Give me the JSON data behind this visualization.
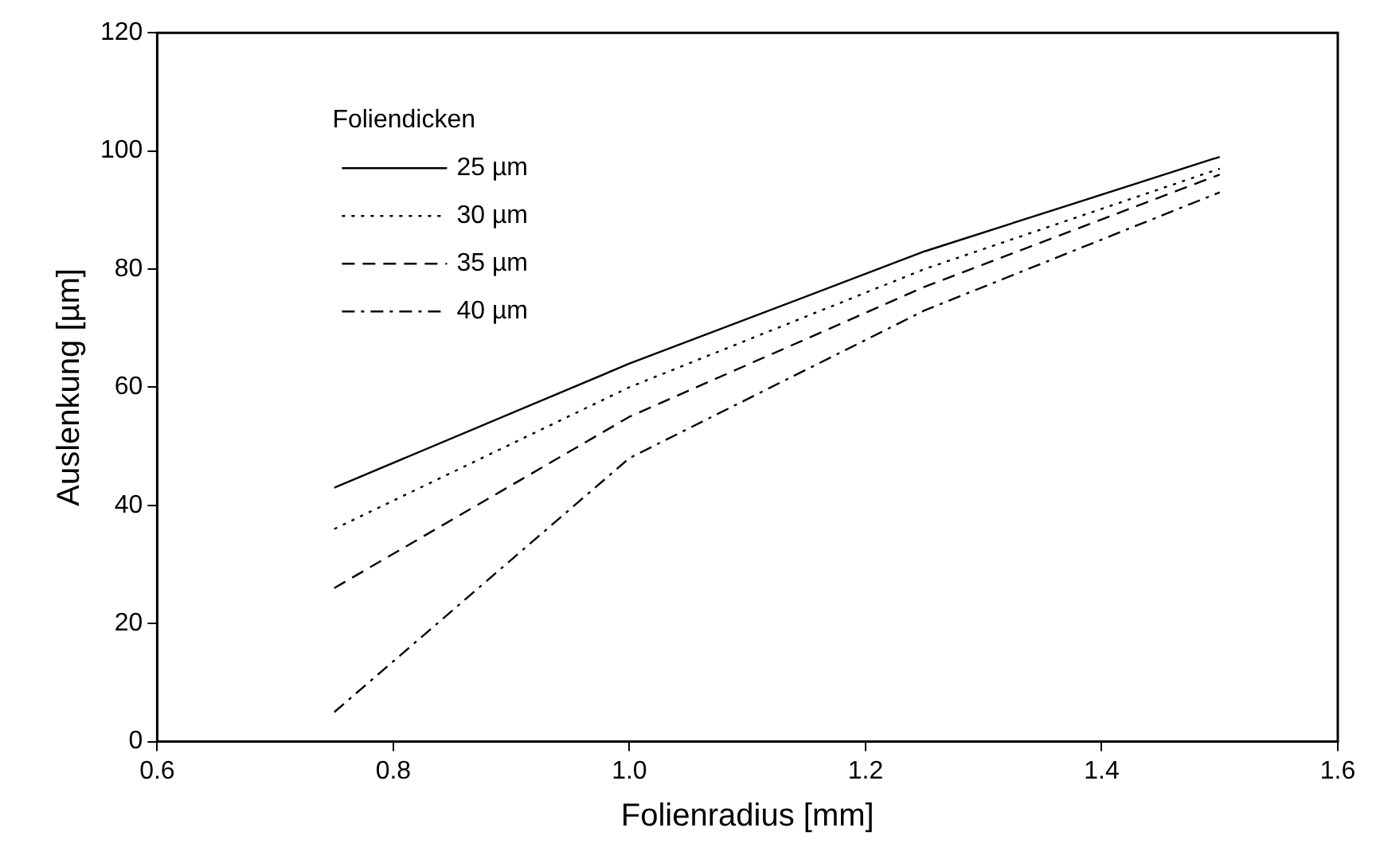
{
  "chart_data": {
    "type": "line",
    "xlabel": "Folienradius [mm]",
    "ylabel": "Auslenkung [µm]",
    "legend_title": "Foliendicken",
    "x": [
      0.75,
      1.0,
      1.25,
      1.5
    ],
    "series": [
      {
        "name": "25 µm",
        "color": "#000000",
        "line_style": "solid",
        "values": [
          43,
          64,
          83,
          99
        ]
      },
      {
        "name": "30 µm",
        "color": "#000000",
        "line_style": "dotted",
        "values": [
          36,
          60,
          80,
          97
        ]
      },
      {
        "name": "35 µm",
        "color": "#000000",
        "line_style": "dashed",
        "values": [
          26,
          55,
          77,
          96
        ]
      },
      {
        "name": "40 µm",
        "color": "#000000",
        "line_style": "dashdot",
        "values": [
          5,
          48,
          73,
          93
        ]
      }
    ],
    "xlim": [
      0.6,
      1.6
    ],
    "xticks": [
      {
        "value": 0.6,
        "label": "0.6"
      },
      {
        "value": 0.8,
        "label": "0.8"
      },
      {
        "value": 1.0,
        "label": "1.0"
      },
      {
        "value": 1.2,
        "label": "1.2"
      },
      {
        "value": 1.4,
        "label": "1.4"
      },
      {
        "value": 1.6,
        "label": "1.6"
      }
    ],
    "ylim": [
      0,
      120
    ],
    "yticks": [
      0,
      20,
      40,
      60,
      80,
      100,
      120
    ],
    "grid": false,
    "legend": "top left",
    "marker": "none"
  }
}
